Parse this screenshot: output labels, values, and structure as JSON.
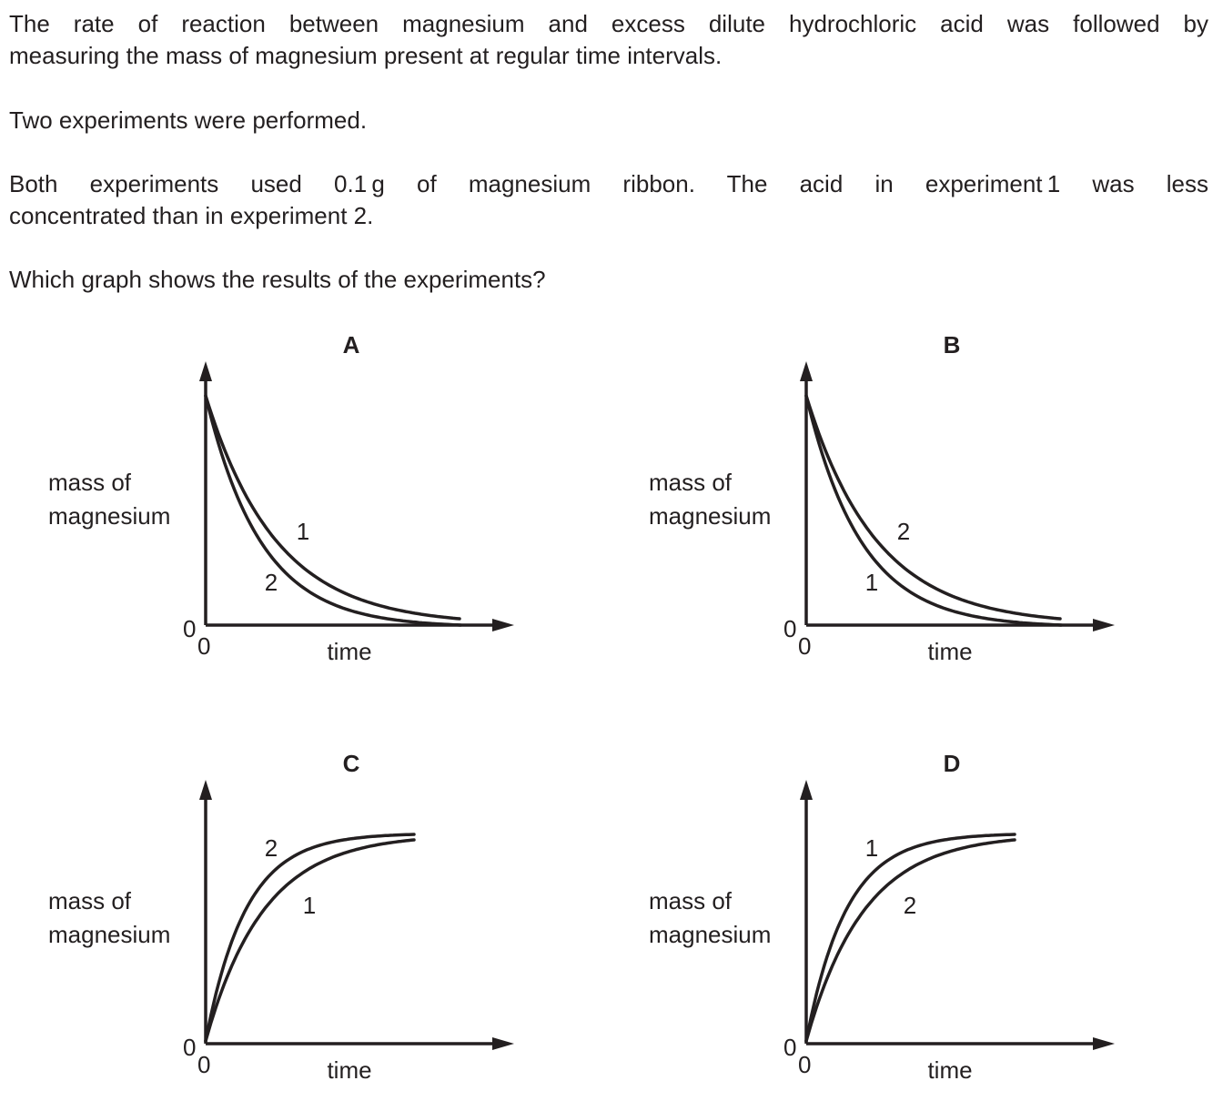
{
  "question": {
    "line1": "The rate of reaction between magnesium and excess dilute hydrochloric acid was followed by",
    "line2": "measuring the mass of magnesium present at regular time intervals.",
    "p2": "Two experiments were performed.",
    "p3_line1": "Both experiments used 0.1 g of magnesium ribbon. The acid in experiment 1 was less",
    "p3_line2": "concentrated than in experiment 2.",
    "p4": "Which graph shows the results of the experiments?"
  },
  "chart_data": [
    {
      "type": "line",
      "label": "A",
      "ylabel_line1": "mass of",
      "ylabel_line2": "magnesium",
      "xlabel": "time",
      "x_origin": "0",
      "y_origin": "0",
      "trend": "decreasing",
      "series": [
        {
          "name": "1",
          "values": [
            1.0,
            0.55,
            0.3,
            0.17,
            0.09,
            0.05
          ],
          "x": [
            0,
            1,
            2,
            3,
            4,
            5
          ]
        },
        {
          "name": "2",
          "values": [
            1.0,
            0.42,
            0.18,
            0.08,
            0.03,
            0.0
          ],
          "x": [
            0,
            1,
            2,
            3,
            4,
            5
          ]
        }
      ]
    },
    {
      "type": "line",
      "label": "B",
      "ylabel_line1": "mass of",
      "ylabel_line2": "magnesium",
      "xlabel": "time",
      "x_origin": "0",
      "y_origin": "0",
      "trend": "decreasing",
      "series": [
        {
          "name": "2",
          "values": [
            1.0,
            0.55,
            0.3,
            0.17,
            0.09,
            0.05
          ],
          "x": [
            0,
            1,
            2,
            3,
            4,
            5
          ]
        },
        {
          "name": "1",
          "values": [
            1.0,
            0.42,
            0.18,
            0.08,
            0.03,
            0.0
          ],
          "x": [
            0,
            1,
            2,
            3,
            4,
            5
          ]
        }
      ]
    },
    {
      "type": "line",
      "label": "C",
      "ylabel_line1": "mass of",
      "ylabel_line2": "magnesium",
      "xlabel": "time",
      "x_origin": "0",
      "y_origin": "0",
      "trend": "increasing",
      "series": [
        {
          "name": "2",
          "values": [
            0.0,
            0.7,
            0.9,
            0.97,
            1.0
          ],
          "x": [
            0,
            1,
            2,
            3,
            4
          ]
        },
        {
          "name": "1",
          "values": [
            0.0,
            0.5,
            0.75,
            0.9,
            0.97
          ],
          "x": [
            0,
            1,
            2,
            3,
            4
          ]
        }
      ]
    },
    {
      "type": "line",
      "label": "D",
      "ylabel_line1": "mass of",
      "ylabel_line2": "magnesium",
      "xlabel": "time",
      "x_origin": "0",
      "y_origin": "0",
      "trend": "increasing",
      "series": [
        {
          "name": "1",
          "values": [
            0.0,
            0.7,
            0.9,
            0.97,
            1.0
          ],
          "x": [
            0,
            1,
            2,
            3,
            4
          ]
        },
        {
          "name": "2",
          "values": [
            0.0,
            0.5,
            0.75,
            0.9,
            0.97
          ],
          "x": [
            0,
            1,
            2,
            3,
            4
          ]
        }
      ]
    }
  ]
}
